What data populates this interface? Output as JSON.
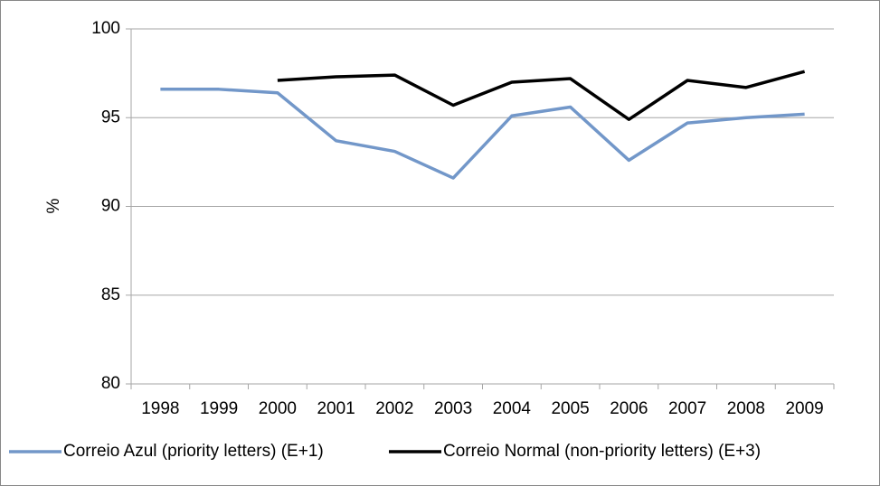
{
  "chart_data": {
    "type": "line",
    "y_label": "%",
    "categories": [
      "1998",
      "1999",
      "2000",
      "2001",
      "2002",
      "2003",
      "2004",
      "2005",
      "2006",
      "2007",
      "2008",
      "2009"
    ],
    "series": [
      {
        "name": "Correio Azul (priority letters) (E+1)",
        "color": "#7297c9",
        "values": [
          96.6,
          96.6,
          96.4,
          93.7,
          93.1,
          91.6,
          95.1,
          95.6,
          92.6,
          94.7,
          95.0,
          95.2
        ]
      },
      {
        "name": "Correio Normal (non-priority letters) (E+3)",
        "color": "#000000",
        "values": [
          null,
          null,
          97.1,
          97.3,
          97.4,
          95.7,
          97.0,
          97.2,
          94.9,
          97.1,
          96.7,
          97.6
        ]
      }
    ],
    "ylim": [
      80,
      100
    ],
    "yticks": [
      80,
      85,
      90,
      95,
      100
    ],
    "grid": true
  }
}
